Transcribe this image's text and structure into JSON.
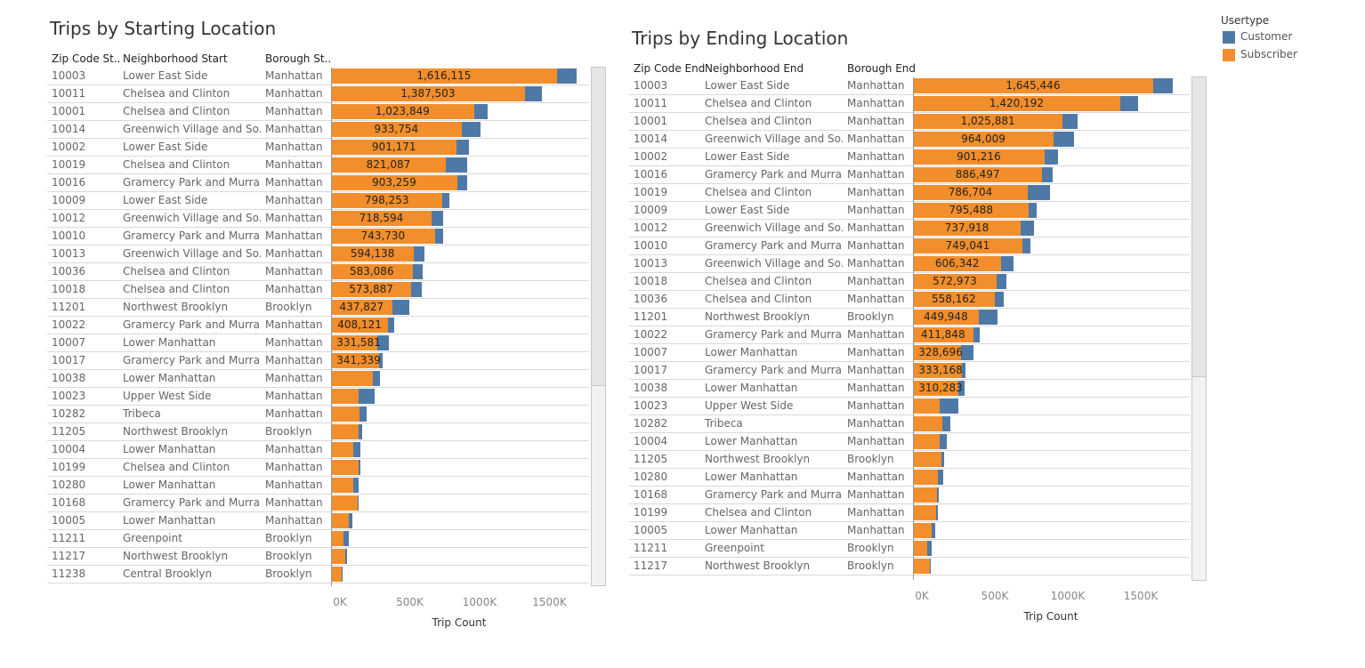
{
  "legend": {
    "title": "Usertype",
    "items": [
      {
        "label": "Customer",
        "color": "#4e79a7"
      },
      {
        "label": "Subscriber",
        "color": "#f28e2b"
      }
    ]
  },
  "chart_data": [
    {
      "type": "bar",
      "orientation": "horizontal",
      "stacked": true,
      "title": "Trips by Starting Location",
      "columns": [
        "Zip Code St..",
        "Neighborhood Start",
        "Borough St.."
      ],
      "xlabel": "Trip Count",
      "xticks": [
        "0K",
        "500K",
        "1000K",
        "1500K"
      ],
      "xlim": [
        0,
        1850000
      ],
      "series": [
        {
          "name": "Subscriber",
          "color": "#f28e2b"
        },
        {
          "name": "Customer",
          "color": "#4e79a7"
        }
      ],
      "rows": [
        {
          "zip": "10003",
          "neighborhood": "Lower East Side",
          "borough": "Manhattan",
          "subscriber": 1616115,
          "customer": 140000,
          "label": "1,616,115"
        },
        {
          "zip": "10011",
          "neighborhood": "Chelsea and Clinton",
          "borough": "Manhattan",
          "subscriber": 1387503,
          "customer": 125000,
          "label": "1,387,503"
        },
        {
          "zip": "10001",
          "neighborhood": "Chelsea and Clinton",
          "borough": "Manhattan",
          "subscriber": 1023849,
          "customer": 100000,
          "label": "1,023,849"
        },
        {
          "zip": "10014",
          "neighborhood": "Greenwich Village and So..",
          "borough": "Manhattan",
          "subscriber": 933754,
          "customer": 135000,
          "label": "933,754"
        },
        {
          "zip": "10002",
          "neighborhood": "Lower East Side",
          "borough": "Manhattan",
          "subscriber": 901171,
          "customer": 85000,
          "label": "901,171"
        },
        {
          "zip": "10019",
          "neighborhood": "Chelsea and Clinton",
          "borough": "Manhattan",
          "subscriber": 821087,
          "customer": 155000,
          "label": "821,087"
        },
        {
          "zip": "10016",
          "neighborhood": "Gramercy Park and Murra..",
          "borough": "Manhattan",
          "subscriber": 903259,
          "customer": 70000,
          "label": "903,259"
        },
        {
          "zip": "10009",
          "neighborhood": "Lower East Side",
          "borough": "Manhattan",
          "subscriber": 798253,
          "customer": 50000,
          "label": "798,253"
        },
        {
          "zip": "10012",
          "neighborhood": "Greenwich Village and So..",
          "borough": "Manhattan",
          "subscriber": 718594,
          "customer": 85000,
          "label": "718,594"
        },
        {
          "zip": "10010",
          "neighborhood": "Gramercy Park and Murra..",
          "borough": "Manhattan",
          "subscriber": 743730,
          "customer": 60000,
          "label": "743,730"
        },
        {
          "zip": "10013",
          "neighborhood": "Greenwich Village and So..",
          "borough": "Manhattan",
          "subscriber": 594138,
          "customer": 75000,
          "label": "594,138"
        },
        {
          "zip": "10036",
          "neighborhood": "Chelsea and Clinton",
          "borough": "Manhattan",
          "subscriber": 583086,
          "customer": 70000,
          "label": "583,086"
        },
        {
          "zip": "10018",
          "neighborhood": "Chelsea and Clinton",
          "borough": "Manhattan",
          "subscriber": 573887,
          "customer": 75000,
          "label": "573,887"
        },
        {
          "zip": "11201",
          "neighborhood": "Northwest Brooklyn",
          "borough": "Brooklyn",
          "subscriber": 437827,
          "customer": 125000,
          "label": "437,827"
        },
        {
          "zip": "10022",
          "neighborhood": "Gramercy Park and Murra..",
          "borough": "Manhattan",
          "subscriber": 408121,
          "customer": 45000,
          "label": "408,121"
        },
        {
          "zip": "10007",
          "neighborhood": "Lower Manhattan",
          "borough": "Manhattan",
          "subscriber": 331581,
          "customer": 80000,
          "label": "331,581"
        },
        {
          "zip": "10017",
          "neighborhood": "Gramercy Park and Murra..",
          "borough": "Manhattan",
          "subscriber": 341339,
          "customer": 25000,
          "label": "341,339"
        },
        {
          "zip": "10038",
          "neighborhood": "Lower Manhattan",
          "borough": "Manhattan",
          "subscriber": 300000,
          "customer": 50000,
          "label": ""
        },
        {
          "zip": "10023",
          "neighborhood": "Upper West Side",
          "borough": "Manhattan",
          "subscriber": 195000,
          "customer": 115000,
          "label": ""
        },
        {
          "zip": "10282",
          "neighborhood": "Tribeca",
          "borough": "Manhattan",
          "subscriber": 205000,
          "customer": 50000,
          "label": ""
        },
        {
          "zip": "11205",
          "neighborhood": "Northwest Brooklyn",
          "borough": "Brooklyn",
          "subscriber": 200000,
          "customer": 25000,
          "label": ""
        },
        {
          "zip": "10004",
          "neighborhood": "Lower Manhattan",
          "borough": "Manhattan",
          "subscriber": 160000,
          "customer": 50000,
          "label": ""
        },
        {
          "zip": "10199",
          "neighborhood": "Chelsea and Clinton",
          "borough": "Manhattan",
          "subscriber": 195000,
          "customer": 15000,
          "label": ""
        },
        {
          "zip": "10280",
          "neighborhood": "Lower Manhattan",
          "borough": "Manhattan",
          "subscriber": 160000,
          "customer": 40000,
          "label": ""
        },
        {
          "zip": "10168",
          "neighborhood": "Gramercy Park and Murra..",
          "borough": "Manhattan",
          "subscriber": 190000,
          "customer": 10000,
          "label": ""
        },
        {
          "zip": "10005",
          "neighborhood": "Lower Manhattan",
          "borough": "Manhattan",
          "subscriber": 125000,
          "customer": 25000,
          "label": ""
        },
        {
          "zip": "11211",
          "neighborhood": "Greenpoint",
          "borough": "Brooklyn",
          "subscriber": 90000,
          "customer": 35000,
          "label": ""
        },
        {
          "zip": "11217",
          "neighborhood": "Northwest Brooklyn",
          "borough": "Brooklyn",
          "subscriber": 100000,
          "customer": 15000,
          "label": ""
        },
        {
          "zip": "11238",
          "neighborhood": "Central Brooklyn",
          "borough": "Brooklyn",
          "subscriber": 75000,
          "customer": 10000,
          "label": ""
        }
      ]
    },
    {
      "type": "bar",
      "orientation": "horizontal",
      "stacked": true,
      "title": "Trips by Ending Location",
      "columns": [
        "Zip Code End",
        "Neighborhood End",
        "Borough End"
      ],
      "xlabel": "Trip Count",
      "xticks": [
        "0K",
        "500K",
        "1000K",
        "1500K"
      ],
      "xlim": [
        0,
        1850000
      ],
      "series": [
        {
          "name": "Subscriber",
          "color": "#f28e2b"
        },
        {
          "name": "Customer",
          "color": "#4e79a7"
        }
      ],
      "rows": [
        {
          "zip": "10003",
          "neighborhood": "Lower East Side",
          "borough": "Manhattan",
          "subscriber": 1645446,
          "customer": 135000,
          "label": "1,645,446"
        },
        {
          "zip": "10011",
          "neighborhood": "Chelsea and Clinton",
          "borough": "Manhattan",
          "subscriber": 1420192,
          "customer": 120000,
          "label": "1,420,192"
        },
        {
          "zip": "10001",
          "neighborhood": "Chelsea and Clinton",
          "borough": "Manhattan",
          "subscriber": 1025881,
          "customer": 105000,
          "label": "1,025,881"
        },
        {
          "zip": "10014",
          "neighborhood": "Greenwich Village and So..",
          "borough": "Manhattan",
          "subscriber": 964009,
          "customer": 140000,
          "label": "964,009"
        },
        {
          "zip": "10002",
          "neighborhood": "Lower East Side",
          "borough": "Manhattan",
          "subscriber": 901216,
          "customer": 95000,
          "label": "901,216"
        },
        {
          "zip": "10016",
          "neighborhood": "Gramercy Park and Murra..",
          "borough": "Manhattan",
          "subscriber": 886497,
          "customer": 70000,
          "label": "886,497"
        },
        {
          "zip": "10019",
          "neighborhood": "Chelsea and Clinton",
          "borough": "Manhattan",
          "subscriber": 786704,
          "customer": 155000,
          "label": "786,704"
        },
        {
          "zip": "10009",
          "neighborhood": "Lower East Side",
          "borough": "Manhattan",
          "subscriber": 795488,
          "customer": 50000,
          "label": "795,488"
        },
        {
          "zip": "10012",
          "neighborhood": "Greenwich Village and So..",
          "borough": "Manhattan",
          "subscriber": 737918,
          "customer": 90000,
          "label": "737,918"
        },
        {
          "zip": "10010",
          "neighborhood": "Gramercy Park and Murra..",
          "borough": "Manhattan",
          "subscriber": 749041,
          "customer": 55000,
          "label": "749,041"
        },
        {
          "zip": "10013",
          "neighborhood": "Greenwich Village and So..",
          "borough": "Manhattan",
          "subscriber": 606342,
          "customer": 80000,
          "label": "606,342"
        },
        {
          "zip": "10018",
          "neighborhood": "Chelsea and Clinton",
          "borough": "Manhattan",
          "subscriber": 572973,
          "customer": 70000,
          "label": "572,973"
        },
        {
          "zip": "10036",
          "neighborhood": "Chelsea and Clinton",
          "borough": "Manhattan",
          "subscriber": 558162,
          "customer": 65000,
          "label": "558,162"
        },
        {
          "zip": "11201",
          "neighborhood": "Northwest Brooklyn",
          "borough": "Brooklyn",
          "subscriber": 449948,
          "customer": 130000,
          "label": "449,948"
        },
        {
          "zip": "10022",
          "neighborhood": "Gramercy Park and Murra..",
          "borough": "Manhattan",
          "subscriber": 411848,
          "customer": 45000,
          "label": "411,848"
        },
        {
          "zip": "10007",
          "neighborhood": "Lower Manhattan",
          "borough": "Manhattan",
          "subscriber": 328696,
          "customer": 85000,
          "label": "328,696"
        },
        {
          "zip": "10017",
          "neighborhood": "Gramercy Park and Murra..",
          "borough": "Manhattan",
          "subscriber": 333168,
          "customer": 25000,
          "label": "333,168"
        },
        {
          "zip": "10038",
          "neighborhood": "Lower Manhattan",
          "borough": "Manhattan",
          "subscriber": 310283,
          "customer": 45000,
          "label": "310,283"
        },
        {
          "zip": "10023",
          "neighborhood": "Upper West Side",
          "borough": "Manhattan",
          "subscriber": 185000,
          "customer": 125000,
          "label": ""
        },
        {
          "zip": "10282",
          "neighborhood": "Tribeca",
          "borough": "Manhattan",
          "subscriber": 200000,
          "customer": 55000,
          "label": ""
        },
        {
          "zip": "10004",
          "neighborhood": "Lower Manhattan",
          "borough": "Manhattan",
          "subscriber": 185000,
          "customer": 45000,
          "label": ""
        },
        {
          "zip": "11205",
          "neighborhood": "Northwest Brooklyn",
          "borough": "Brooklyn",
          "subscriber": 195000,
          "customer": 20000,
          "label": ""
        },
        {
          "zip": "10280",
          "neighborhood": "Lower Manhattan",
          "borough": "Manhattan",
          "subscriber": 170000,
          "customer": 35000,
          "label": ""
        },
        {
          "zip": "10168",
          "neighborhood": "Gramercy Park and Murra..",
          "borough": "Manhattan",
          "subscriber": 165000,
          "customer": 10000,
          "label": ""
        },
        {
          "zip": "10199",
          "neighborhood": "Chelsea and Clinton",
          "borough": "Manhattan",
          "subscriber": 160000,
          "customer": 10000,
          "label": ""
        },
        {
          "zip": "10005",
          "neighborhood": "Lower Manhattan",
          "borough": "Manhattan",
          "subscriber": 125000,
          "customer": 25000,
          "label": ""
        },
        {
          "zip": "11211",
          "neighborhood": "Greenpoint",
          "borough": "Brooklyn",
          "subscriber": 95000,
          "customer": 35000,
          "label": ""
        },
        {
          "zip": "11217",
          "neighborhood": "Northwest Brooklyn",
          "borough": "Brooklyn",
          "subscriber": 115000,
          "customer": 10000,
          "label": ""
        }
      ]
    }
  ]
}
